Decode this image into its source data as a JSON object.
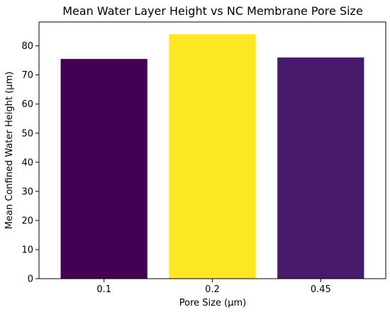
{
  "chart_data": {
    "type": "bar",
    "title": "Mean Water Layer Height vs NC Membrane Pore Size",
    "xlabel": "Pore Size (μm)",
    "ylabel": "Mean Confined Water Height (μm)",
    "categories": [
      "0.1",
      "0.2",
      "0.45"
    ],
    "values": [
      75.5,
      84.0,
      76.0
    ],
    "colors": [
      "#440154",
      "#fde725",
      "#481a6c"
    ],
    "ylim": [
      0,
      88.2
    ],
    "yticks": [
      0,
      10,
      20,
      30,
      40,
      50,
      60,
      70,
      80
    ],
    "grid": false,
    "legend": "none"
  }
}
